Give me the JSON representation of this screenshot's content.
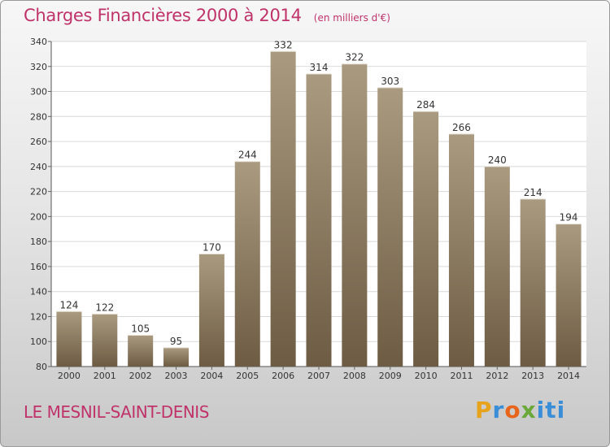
{
  "header": {
    "title": "Charges Financières 2000 à 2014",
    "subtitle": "(en milliers d'€)"
  },
  "footer": {
    "commune": "LE MESNIL-SAINT-DENIS",
    "logo_text": "Proxiti"
  },
  "colors": {
    "title": "#c0336a",
    "bar_top": "#a99a80",
    "bar_bottom": "#6d5c43",
    "grid": "#d9d9d9"
  },
  "chart_data": {
    "type": "bar",
    "title": "Charges Financières 2000 à 2014",
    "subtitle": "(en milliers d'€)",
    "categories": [
      "2000",
      "2001",
      "2002",
      "2003",
      "2004",
      "2005",
      "2006",
      "2007",
      "2008",
      "2009",
      "2010",
      "2011",
      "2012",
      "2013",
      "2014"
    ],
    "values": [
      124,
      122,
      105,
      95,
      170,
      244,
      332,
      314,
      322,
      303,
      284,
      266,
      240,
      214,
      194
    ],
    "ylim": [
      80,
      340
    ],
    "yticks": [
      80,
      100,
      120,
      140,
      160,
      180,
      200,
      220,
      240,
      260,
      280,
      300,
      320,
      340
    ],
    "grid": true,
    "data_labels": true
  }
}
